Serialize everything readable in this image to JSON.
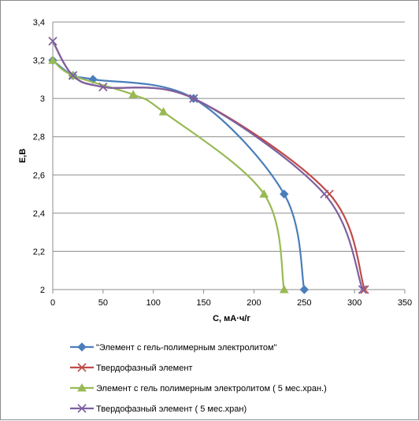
{
  "chart_data": {
    "type": "line",
    "xlabel": "С, мА·ч/г",
    "ylabel": "Е,В",
    "xlim": [
      0,
      350
    ],
    "ylim": [
      2,
      3.4
    ],
    "x_ticks": [
      0,
      50,
      100,
      150,
      200,
      250,
      300,
      350
    ],
    "y_ticks": [
      2,
      2.2,
      2.4,
      2.6,
      2.8,
      3,
      3.2,
      3.4
    ],
    "x_tick_labels": [
      "0",
      "50",
      "100",
      "150",
      "200",
      "250",
      "300",
      "350"
    ],
    "y_tick_labels": [
      "2",
      "2,2",
      "2,4",
      "2,6",
      "2,8",
      "3",
      "3,2",
      "3,4"
    ],
    "grid": "horizontal",
    "legend_position": "bottom",
    "series": [
      {
        "name": "\"Элемент с гель-полимерным электролитом\"",
        "color": "#4a7ebb",
        "marker": "diamond",
        "points": [
          [
            0,
            3.2
          ],
          [
            20,
            3.12
          ],
          [
            40,
            3.1
          ],
          [
            140,
            3.0
          ],
          [
            230,
            2.5
          ],
          [
            250,
            2.0
          ]
        ]
      },
      {
        "name": "Твердофазный элемент",
        "color": "#be4b48",
        "marker": "x",
        "points": [
          [
            0,
            3.3
          ],
          [
            20,
            3.12
          ],
          [
            50,
            3.06
          ],
          [
            140,
            3.0
          ],
          [
            275,
            2.5
          ],
          [
            310,
            2.0
          ]
        ]
      },
      {
        "name": "Элемент с гель полимерным электролитом ( 5 мес.хран.)",
        "color": "#98b954",
        "marker": "triangle",
        "points": [
          [
            0,
            3.2
          ],
          [
            20,
            3.12
          ],
          [
            80,
            3.02
          ],
          [
            110,
            2.93
          ],
          [
            210,
            2.5
          ],
          [
            230,
            2.0
          ]
        ]
      },
      {
        "name": "Твердофазный элемент ( 5 мес.хран)",
        "color": "#7d60a0",
        "marker": "x",
        "points": [
          [
            0,
            3.3
          ],
          [
            20,
            3.12
          ],
          [
            50,
            3.06
          ],
          [
            140,
            3.0
          ],
          [
            270,
            2.5
          ],
          [
            308,
            2.0
          ]
        ]
      }
    ]
  }
}
